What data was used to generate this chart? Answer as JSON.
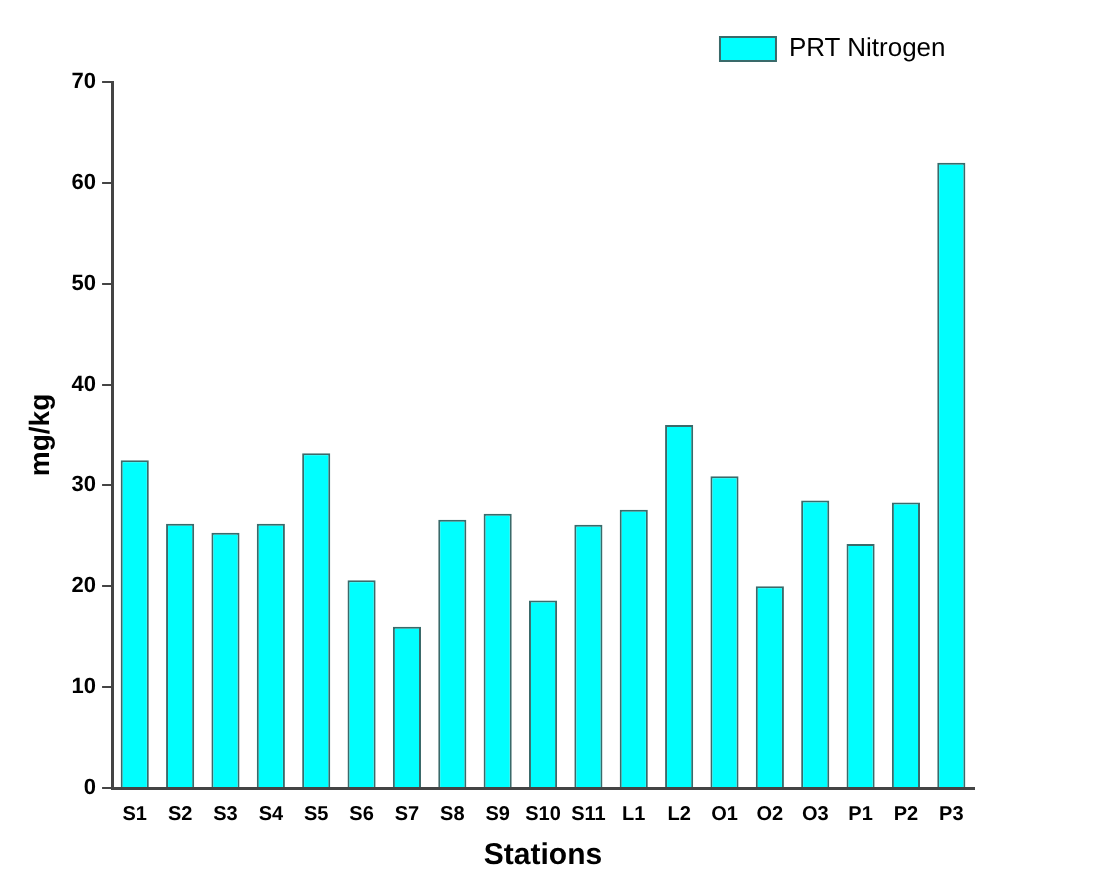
{
  "chart_data": {
    "type": "bar",
    "xlabel": "Stations",
    "ylabel": "mg/kg",
    "categories": [
      "S1",
      "S2",
      "S3",
      "S4",
      "S5",
      "S6",
      "S7",
      "S8",
      "S9",
      "S10",
      "S11",
      "L1",
      "L2",
      "O1",
      "O2",
      "O3",
      "P1",
      "P2",
      "P3"
    ],
    "series": [
      {
        "name": "PRT Nitrogen",
        "color": "#00ffff",
        "values": [
          32.5,
          26.2,
          25.3,
          26.2,
          33.2,
          20.6,
          16,
          26.6,
          27.2,
          18.6,
          26.1,
          27.6,
          36,
          30.9,
          20,
          28.5,
          24.2,
          28.3,
          62
        ]
      }
    ],
    "ylim": [
      0,
      70
    ],
    "yticks": [
      0,
      10,
      20,
      30,
      40,
      50,
      60,
      70
    ],
    "grid": false,
    "legend": "top right"
  }
}
